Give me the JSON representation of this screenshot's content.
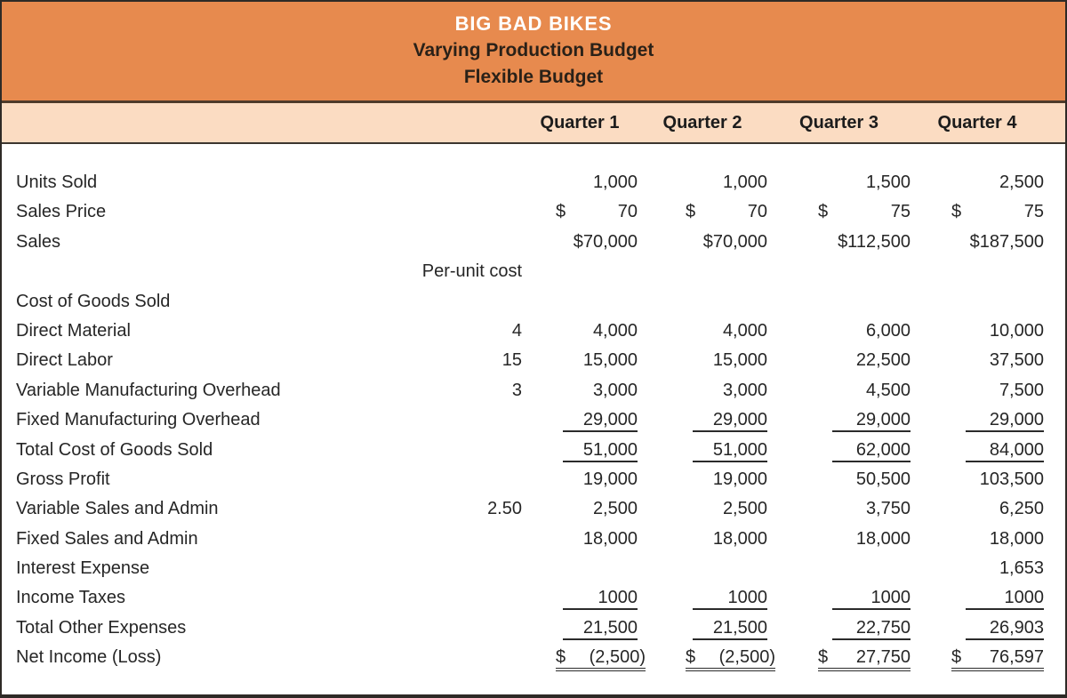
{
  "title": {
    "line1": "BIG BAD BIKES",
    "line2": "Varying Production Budget",
    "line3": "Flexible Budget"
  },
  "column_headers": [
    "Quarter 1",
    "Quarter 2",
    "Quarter 3",
    "Quarter 4"
  ],
  "per_unit_label": "Per-unit cost",
  "colors": {
    "header_bg": "#E78A4E",
    "subheader_bg": "#FBDCC2",
    "border": "#2E2A26",
    "rule": "#2B2B2B",
    "title_text": "#FFFFFF",
    "body_text": "#262626"
  },
  "rows": [
    {
      "label": "Units Sold",
      "values": [
        "1,000",
        "1,000",
        "1,500",
        "2,500"
      ]
    },
    {
      "label": "Sales Price",
      "dollar_split": true,
      "values": [
        "70",
        "70",
        "75",
        "75"
      ]
    },
    {
      "label": "Sales",
      "values": [
        "$70,000",
        "$70,000",
        "$112,500",
        "$187,500"
      ]
    },
    {
      "type": "per_unit_header",
      "label": "",
      "values": [
        "",
        "",
        "",
        ""
      ]
    },
    {
      "label": "Cost of Goods Sold",
      "values": [
        "",
        "",
        "",
        ""
      ]
    },
    {
      "label": "Direct Material",
      "per_unit": "4",
      "values": [
        "4,000",
        "4,000",
        "6,000",
        "10,000"
      ]
    },
    {
      "label": "Direct Labor",
      "per_unit": "15",
      "values": [
        "15,000",
        "15,000",
        "22,500",
        "37,500"
      ]
    },
    {
      "label": "Variable Manufacturing Overhead",
      "per_unit": "3",
      "values": [
        "3,000",
        "3,000",
        "4,500",
        "7,500"
      ]
    },
    {
      "label": "Fixed Manufacturing Overhead",
      "underline": true,
      "values": [
        "29,000",
        "29,000",
        "29,000",
        "29,000"
      ]
    },
    {
      "label": "Total Cost of Goods Sold",
      "underline": true,
      "values": [
        "51,000",
        "51,000",
        "62,000",
        "84,000"
      ]
    },
    {
      "label": "Gross Profit",
      "values": [
        "19,000",
        "19,000",
        "50,500",
        "103,500"
      ]
    },
    {
      "label": "Variable Sales and Admin",
      "per_unit": "2.50",
      "values": [
        "2,500",
        "2,500",
        "3,750",
        "6,250"
      ]
    },
    {
      "label": "Fixed Sales and Admin",
      "values": [
        "18,000",
        "18,000",
        "18,000",
        "18,000"
      ]
    },
    {
      "label": "Interest Expense",
      "values": [
        "",
        "",
        "",
        "1,653"
      ]
    },
    {
      "label": "Income Taxes",
      "underline": true,
      "values": [
        "1000",
        "1000",
        "1000",
        "1000"
      ]
    },
    {
      "label": "Total Other Expenses",
      "underline": true,
      "values": [
        "21,500",
        "21,500",
        "22,750",
        "26,903"
      ]
    },
    {
      "label": "Net Income (Loss)",
      "dollar_split": true,
      "double_underline": true,
      "values": [
        "(2,500)",
        "(2,500)",
        "27,750",
        "76,597"
      ]
    }
  ]
}
